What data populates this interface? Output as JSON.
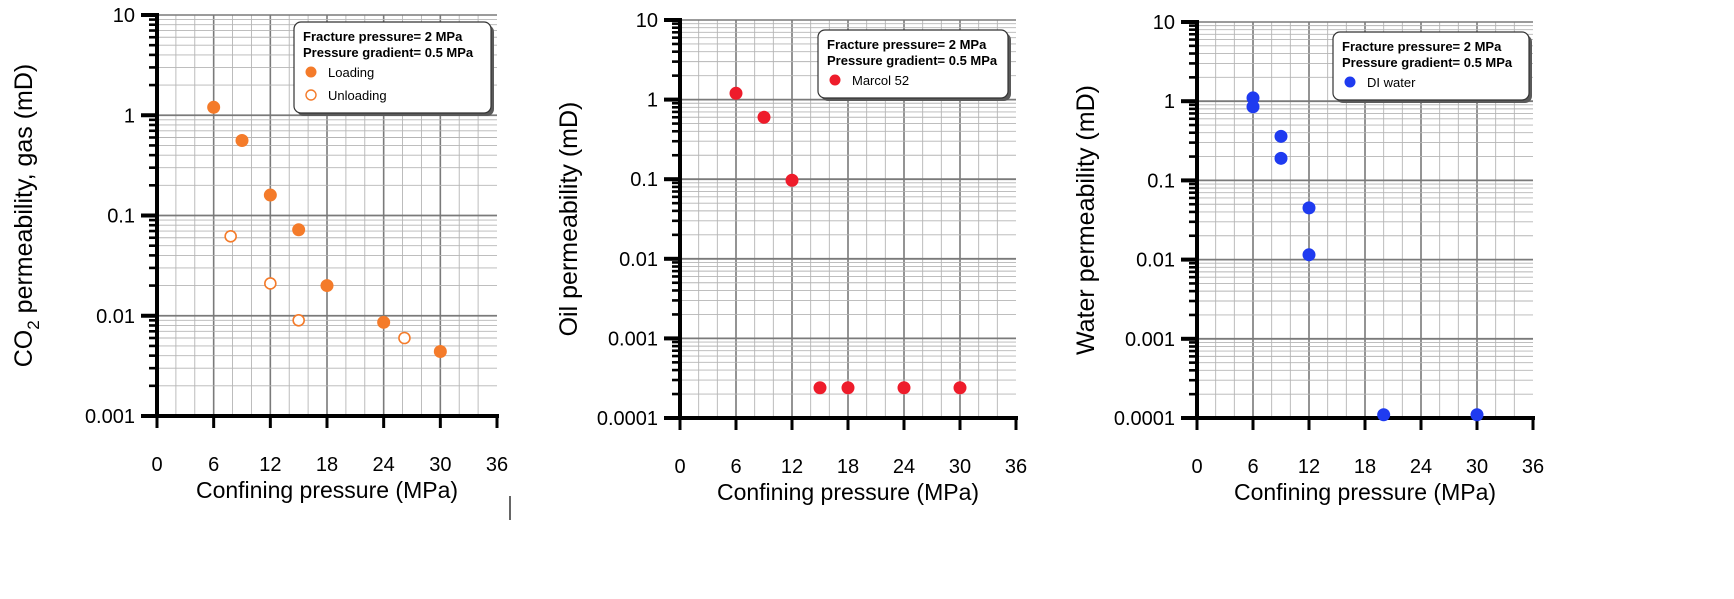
{
  "chart_data": [
    {
      "type": "scatter",
      "xlabel": "Confining pressure (MPa)",
      "ylabel": {
        "prefix": "CO",
        "subscript": "2",
        "suffix": " permeability, gas (mD)"
      },
      "x_ticks": [
        "0",
        "6",
        "12",
        "18",
        "24",
        "30",
        "36"
      ],
      "y_ticks": [
        "0.001",
        "0.01",
        "0.1",
        "1",
        "10"
      ],
      "xlim": [
        0,
        36
      ],
      "ylim": [
        0.001,
        10
      ],
      "yscale": "log",
      "grid": true,
      "legend_position": "top-right",
      "legend_lines": [
        "Fracture pressure= 2 MPa",
        "Pressure gradient= 0.5 MPa"
      ],
      "series": [
        {
          "name": "Loading",
          "color": "#F47B2A",
          "marker": "filled-circle",
          "x": [
            6,
            9,
            12,
            15,
            18,
            24,
            30
          ],
          "y": [
            1.2,
            0.56,
            0.16,
            0.072,
            0.02,
            0.0086,
            0.0044
          ]
        },
        {
          "name": "Unloading",
          "color": "#F47B2A",
          "marker": "open-circle",
          "x": [
            7.8,
            12,
            15,
            26.2
          ],
          "y": [
            0.062,
            0.021,
            0.009,
            0.006
          ]
        }
      ]
    },
    {
      "type": "scatter",
      "xlabel": "Confining pressure (MPa)",
      "ylabel": {
        "prefix": "Oil permeability (mD)",
        "subscript": "",
        "suffix": ""
      },
      "x_ticks": [
        "0",
        "6",
        "12",
        "18",
        "24",
        "30",
        "36"
      ],
      "y_ticks": [
        "0.0001",
        "0.001",
        "0.01",
        "0.1",
        "1",
        "10"
      ],
      "xlim": [
        0,
        36
      ],
      "ylim": [
        0.0001,
        10
      ],
      "yscale": "log",
      "grid": true,
      "legend_position": "top-right",
      "legend_lines": [
        "Fracture pressure= 2 MPa",
        "Pressure gradient= 0.5 MPa"
      ],
      "series": [
        {
          "name": "Marcol 52",
          "color": "#EE1C2B",
          "marker": "filled-circle",
          "x": [
            6,
            9,
            12,
            15,
            18,
            24,
            30
          ],
          "y": [
            1.2,
            0.6,
            0.097,
            0.00024,
            0.00024,
            0.00024,
            0.00024
          ]
        }
      ]
    },
    {
      "type": "scatter",
      "xlabel": "Confining pressure (MPa)",
      "ylabel": {
        "prefix": "Water permeability (mD)",
        "subscript": "",
        "suffix": ""
      },
      "x_ticks": [
        "0",
        "6",
        "12",
        "18",
        "24",
        "30",
        "36"
      ],
      "y_ticks": [
        "0.0001",
        "0.001",
        "0.01",
        "0.1",
        "1",
        "10"
      ],
      "xlim": [
        0,
        36
      ],
      "ylim": [
        0.0001,
        10
      ],
      "yscale": "log",
      "grid": true,
      "legend_position": "top-right",
      "legend_lines": [
        "Fracture pressure= 2 MPa",
        "Pressure gradient= 0.5 MPa"
      ],
      "series": [
        {
          "name": "DI water",
          "color": "#1F3BF0",
          "marker": "filled-circle",
          "x": [
            6,
            6,
            9,
            9,
            12,
            12,
            20,
            30
          ],
          "y": [
            1.1,
            0.85,
            0.36,
            0.19,
            0.045,
            0.0115,
            0.00011,
            0.00011
          ]
        }
      ]
    }
  ]
}
